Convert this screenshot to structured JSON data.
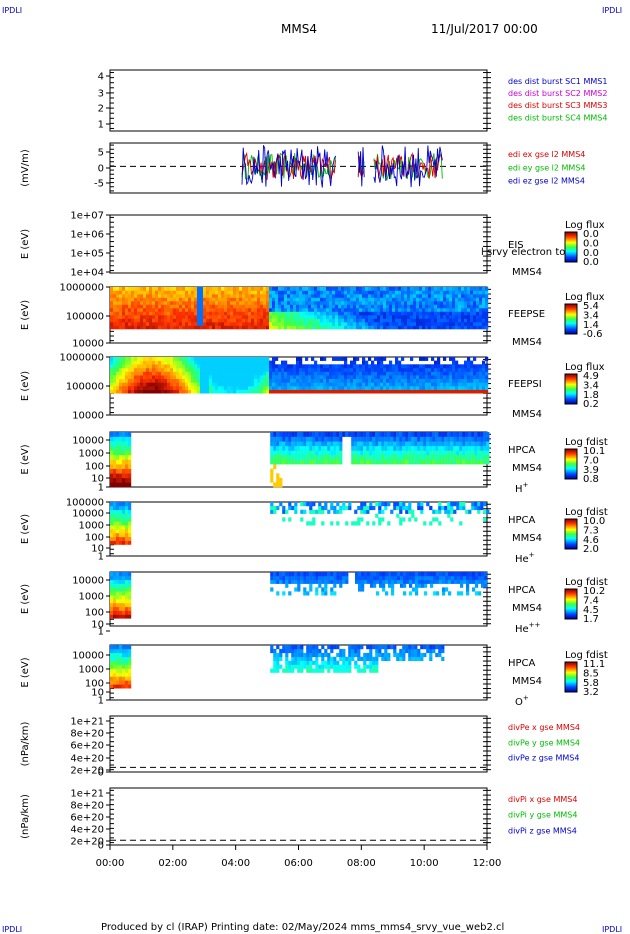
{
  "header": {
    "corner_left": "IPDLI",
    "corner_right": "IPDLI",
    "mission": "MMS4",
    "date": "11/Jul/2017 00:00"
  },
  "footer": {
    "corner_left": "IPDLI",
    "corner_right": "IPDLI",
    "text": "Produced by cl (IRAP)   Printing date: 02/May/2024   mms_mms4_srvy_vue_web2.cl"
  },
  "colors": {
    "blue": "#0000cc",
    "magenta": "#cc00cc",
    "red": "#dd0000",
    "green": "#00bb00",
    "black": "#000000"
  },
  "chart_data": {
    "type": "multi-panel time series",
    "x_ticks": [
      "00:00",
      "02:00",
      "04:00",
      "06:00",
      "08:00",
      "10:00",
      "12:00"
    ],
    "x_range_hours": [
      0,
      12
    ],
    "panels": [
      {
        "id": "des",
        "type": "line",
        "yticks": [
          "4",
          "3",
          "2",
          "1"
        ],
        "ylim": [
          0.5,
          4.5
        ],
        "ylabel": "",
        "legend": [
          {
            "text": "des dist burst SC1 MMS1",
            "color": "#0000cc"
          },
          {
            "text": "des dist burst SC2 MMS2",
            "color": "#cc00cc"
          },
          {
            "text": "des dist burst SC3 MMS3",
            "color": "#dd0000"
          },
          {
            "text": "des dist burst SC4 MMS4",
            "color": "#00bb00"
          }
        ]
      },
      {
        "id": "edi",
        "type": "line",
        "yticks": [
          "5",
          "0",
          "-5"
        ],
        "ylim": [
          -8,
          7
        ],
        "ylabel": "(mV/m)",
        "legend": [
          {
            "text": "edi ex gse l2 MMS4",
            "color": "#dd0000"
          },
          {
            "text": "edi ey gse l2 MMS4",
            "color": "#00bb00"
          },
          {
            "text": "edi ez gse l2 MMS4",
            "color": "#0000cc"
          }
        ],
        "data_interval_hours": [
          [
            4.2,
            7.2
          ],
          [
            7.9,
            8.1
          ],
          [
            8.4,
            10.6
          ]
        ],
        "amplitude_mV_m": 4
      },
      {
        "id": "eis",
        "type": "heatmap",
        "yticks": [
          "1e+07",
          "1e+06",
          "1e+05",
          "1e+04"
        ],
        "ylabel": "E (eV)",
        "right_labels": [
          "EIS",
          "MMS4"
        ],
        "overlay_text": "l srvy electron to",
        "colorbar": {
          "title": "Log flux",
          "ticks": [
            "0.0",
            "0.0",
            "0.0",
            "0.0"
          ]
        }
      },
      {
        "id": "feepse",
        "type": "heatmap",
        "yticks": [
          "1000000",
          "100000",
          "10000"
        ],
        "ylabel": "E (eV)",
        "right_labels": [
          "FEEPSE",
          "MMS4"
        ],
        "colorbar": {
          "title": "Log flux",
          "ticks": [
            "5.4",
            "3.4",
            "1.4",
            "-0.6"
          ]
        }
      },
      {
        "id": "feepsi",
        "type": "heatmap",
        "yticks": [
          "1000000",
          "100000",
          "10000"
        ],
        "ylabel": "E (eV)",
        "right_labels": [
          "FEEPSI",
          "MMS4"
        ],
        "colorbar": {
          "title": "Log flux",
          "ticks": [
            "4.9",
            "3.4",
            "1.8",
            "0.2"
          ]
        }
      },
      {
        "id": "hpca_h",
        "type": "heatmap",
        "yticks": [
          "10000",
          "1000",
          "100",
          "10",
          "1"
        ],
        "ylabel": "E (eV)",
        "right_labels": [
          "HPCA",
          "MMS4"
        ],
        "species": "H",
        "species_sup": "+",
        "colorbar": {
          "title": "Log fdist",
          "ticks": [
            "10.1",
            "7.0",
            "3.9",
            "0.8"
          ]
        }
      },
      {
        "id": "hpca_he1",
        "type": "heatmap",
        "yticks": [
          "100000",
          "10000",
          "1000",
          "100",
          "10",
          "1"
        ],
        "ylabel": "E (eV)",
        "right_labels": [
          "HPCA",
          "MMS4"
        ],
        "species": "He",
        "species_sup": "+",
        "colorbar": {
          "title": "Log fdist",
          "ticks": [
            "10.0",
            "7.3",
            "4.6",
            "2.0"
          ]
        }
      },
      {
        "id": "hpca_he2",
        "type": "heatmap",
        "yticks": [
          "10000",
          "1000",
          "100",
          "10",
          "1"
        ],
        "ylabel": "E (eV)",
        "right_labels": [
          "HPCA",
          "MMS4"
        ],
        "species": "He",
        "species_sup": "++",
        "colorbar": {
          "title": "Log fdist",
          "ticks": [
            "10.2",
            "7.4",
            "4.5",
            "1.7"
          ]
        }
      },
      {
        "id": "hpca_o",
        "type": "heatmap",
        "yticks": [
          "10000",
          "1000",
          "100",
          "10",
          "1"
        ],
        "ylabel": "E (eV)",
        "right_labels": [
          "HPCA",
          "MMS4"
        ],
        "species": "O",
        "species_sup": "+",
        "colorbar": {
          "title": "Log fdist",
          "ticks": [
            "11.1",
            "8.5",
            "5.8",
            "3.2"
          ]
        }
      },
      {
        "id": "divpe",
        "type": "line",
        "yticks": [
          "1e+21",
          "8e+20",
          "6e+20",
          "4e+20",
          "2e+20",
          "0"
        ],
        "ylim": [
          -1e+20,
          1.1e+21
        ],
        "ylabel": "(nPa/km)",
        "legend": [
          {
            "text": "divPe x gse MMS4",
            "color": "#dd0000"
          },
          {
            "text": "divPe y gse MMS4",
            "color": "#00bb00"
          },
          {
            "text": "divPe z gse MMS4",
            "color": "#0000cc"
          }
        ]
      },
      {
        "id": "divpi",
        "type": "line",
        "yticks": [
          "1e+21",
          "8e+20",
          "6e+20",
          "4e+20",
          "2e+20",
          "0"
        ],
        "ylim": [
          -1e+20,
          1.1e+21
        ],
        "ylabel": "(nPa/km)",
        "legend": [
          {
            "text": "divPi x gse MMS4",
            "color": "#dd0000"
          },
          {
            "text": "divPi y gse MMS4",
            "color": "#00bb00"
          },
          {
            "text": "divPi z gse MMS4",
            "color": "#0000cc"
          }
        ]
      }
    ]
  }
}
